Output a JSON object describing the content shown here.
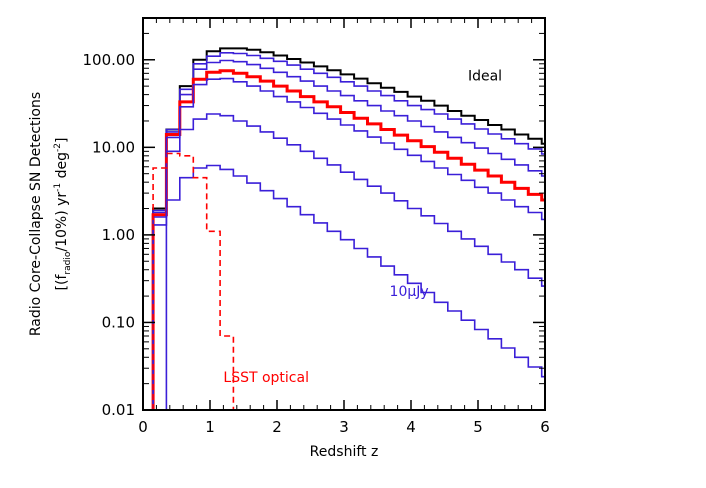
{
  "chart_data": {
    "type": "line",
    "xlabel": "Redshift z",
    "ylabel_line1": "Radio Core-Collapse SN Detections",
    "ylabel_line2_parts": [
      "[(f",
      "radio",
      "/10%) yr",
      "-1",
      " deg",
      "-2",
      "]"
    ],
    "xlim": [
      0,
      6
    ],
    "ylim": [
      0.01,
      300
    ],
    "yscale": "log",
    "xticks": [
      0,
      1,
      2,
      3,
      4,
      5,
      6
    ],
    "xtick_labels": [
      "0",
      "1",
      "2",
      "3",
      "4",
      "5",
      "6"
    ],
    "yticks": [
      0.01,
      0.1,
      1,
      10,
      100
    ],
    "ytick_labels": [
      "0.01",
      "0.10",
      "1.00",
      "10.00",
      "100.00"
    ],
    "bin_edges": [
      0.15,
      0.35,
      0.55,
      0.75,
      0.95,
      1.15,
      1.35,
      1.55,
      1.75,
      1.95,
      2.15,
      2.35,
      2.55,
      2.75,
      2.95,
      3.15,
      3.35,
      3.55,
      3.75,
      3.95,
      4.15,
      4.35,
      4.55,
      4.75,
      4.95,
      5.15,
      5.35,
      5.55,
      5.75,
      5.95,
      6.0
    ],
    "series": [
      {
        "name": "Ideal",
        "color": "#000000",
        "width": 2,
        "values": [
          2.0,
          16,
          50,
          100,
          125,
          135,
          135,
          130,
          122,
          112,
          102,
          93,
          84,
          76,
          68,
          61,
          54,
          48,
          43,
          38,
          34,
          30,
          26,
          23,
          20.5,
          18,
          16,
          14,
          12.5,
          11
        ]
      },
      {
        "color": "#3A1FD8",
        "width": 1.6,
        "values": [
          1.9,
          16,
          46,
          90,
          110,
          120,
          118,
          112,
          104,
          96,
          87,
          78,
          70,
          63,
          56,
          50,
          44,
          39,
          34,
          30,
          27,
          24,
          21,
          18.5,
          16.2,
          14.2,
          12.5,
          11,
          9.6,
          8.4
        ]
      },
      {
        "color": "#3A1FD8",
        "width": 1.6,
        "values": [
          1.8,
          15,
          40,
          78,
          93,
          98,
          95,
          88,
          80,
          72,
          64,
          57,
          50,
          44,
          39,
          34,
          30,
          26,
          23,
          20,
          17.3,
          15,
          13,
          11.3,
          9.8,
          8.5,
          7.3,
          6.3,
          5.4,
          4.7
        ]
      },
      {
        "color": "#FF0000",
        "width": 3,
        "values": [
          1.7,
          14,
          33,
          60,
          72,
          75,
          70,
          64,
          57,
          50,
          44,
          38,
          33,
          29,
          25,
          21.5,
          18.5,
          16,
          13.8,
          11.9,
          10.2,
          8.8,
          7.5,
          6.4,
          5.5,
          4.7,
          4.0,
          3.4,
          2.9,
          2.5
        ]
      },
      {
        "color": "#3A1FD8",
        "width": 1.6,
        "values": [
          1.6,
          13,
          29,
          52,
          60,
          61,
          56,
          50,
          44,
          38,
          33,
          28.5,
          24.5,
          21,
          18,
          15.4,
          13.1,
          11.2,
          9.5,
          8.1,
          6.9,
          5.8,
          4.9,
          4.2,
          3.5,
          3.0,
          2.5,
          2.1,
          1.8,
          1.5
        ]
      },
      {
        "color": "#3A1FD8",
        "width": 1.6,
        "values": [
          1.3,
          9,
          16,
          21,
          24,
          23,
          20,
          17.5,
          15,
          12.7,
          10.7,
          9,
          7.5,
          6.3,
          5.2,
          4.3,
          3.6,
          3.0,
          2.45,
          2.0,
          1.65,
          1.35,
          1.1,
          0.9,
          0.74,
          0.6,
          0.49,
          0.4,
          0.32,
          0.26
        ]
      },
      {
        "name": "10μJy",
        "color": "#3A1FD8",
        "width": 1.6,
        "values": [
          0.01,
          2.5,
          4.5,
          5.8,
          6.2,
          5.6,
          4.7,
          3.9,
          3.2,
          2.6,
          2.1,
          1.7,
          1.37,
          1.1,
          0.88,
          0.7,
          0.56,
          0.44,
          0.35,
          0.28,
          0.22,
          0.17,
          0.135,
          0.106,
          0.083,
          0.065,
          0.051,
          0.04,
          0.031,
          0.024
        ]
      },
      {
        "name": "LSST optical",
        "color": "#FF0000",
        "width": 1.6,
        "dashed": true,
        "values": [
          5.8,
          8.5,
          8.0,
          4.5,
          1.1,
          0.07,
          0.01
        ]
      }
    ],
    "annotations": [
      {
        "text": "Ideal",
        "color": "#000000",
        "x": 4.85,
        "y": 58
      },
      {
        "text": "10μJy",
        "color": "#3A1FD8",
        "x": 3.68,
        "y": 0.2
      },
      {
        "text": "LSST optical",
        "color": "#FF0000",
        "x": 1.2,
        "y": 0.021
      }
    ]
  }
}
